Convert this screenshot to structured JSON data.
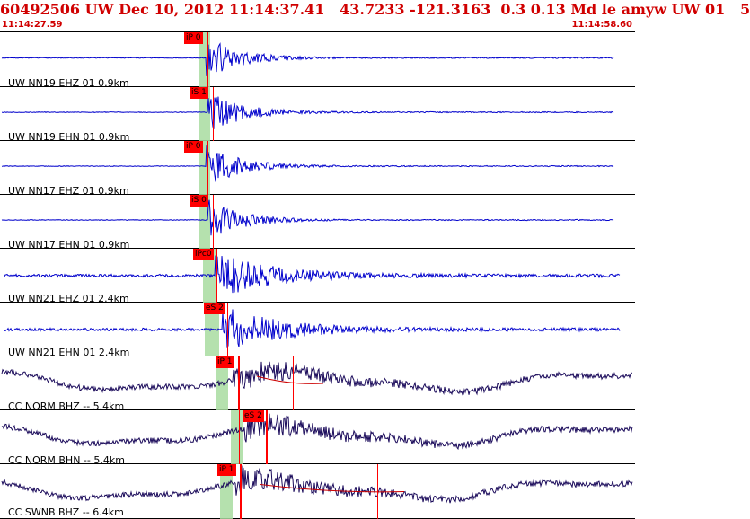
{
  "header": {
    "title": "60492506 UW Dec 10, 2012 11:14:37.41   43.7233 -121.3163  0.3 0.13 Md le amyw UW 01   5",
    "start_time": "11:14:27.59",
    "end_time": "11:14:58.60"
  },
  "colors": {
    "header": "#d00000",
    "trace": "#0000cc",
    "trace_dark": "#1a0a5a",
    "pick": "#ff0000",
    "window": "#a8dca0"
  },
  "traces": [
    {
      "label": "UW NN19 EHZ 01 0.9km",
      "pick": "iP 0",
      "style": "quake"
    },
    {
      "label": "UW NN19 EHN 01 0.9km",
      "pick": "iS 1",
      "style": "quake"
    },
    {
      "label": "UW NN17 EHZ 01 0.9km",
      "pick": "iP 0",
      "style": "quake"
    },
    {
      "label": "UW NN17 EHN 01 0.9km",
      "pick": "iS 0",
      "style": "quake"
    },
    {
      "label": "UW NN21 EHZ 01 2.4km",
      "pick": "iPc0",
      "style": "noisy"
    },
    {
      "label": "UW NN21 EHN 01 2.4km",
      "pick": "eS 2",
      "style": "noisy"
    },
    {
      "label": "CC NORM BHZ -- 5.4km",
      "pick": "iP 1",
      "style": "broad"
    },
    {
      "label": "CC NORM BHN -- 5.4km",
      "pick": "eS 2",
      "style": "broad"
    },
    {
      "label": "CC SWNB BHZ -- 6.4km",
      "pick": "iP 1",
      "style": "broad"
    }
  ]
}
